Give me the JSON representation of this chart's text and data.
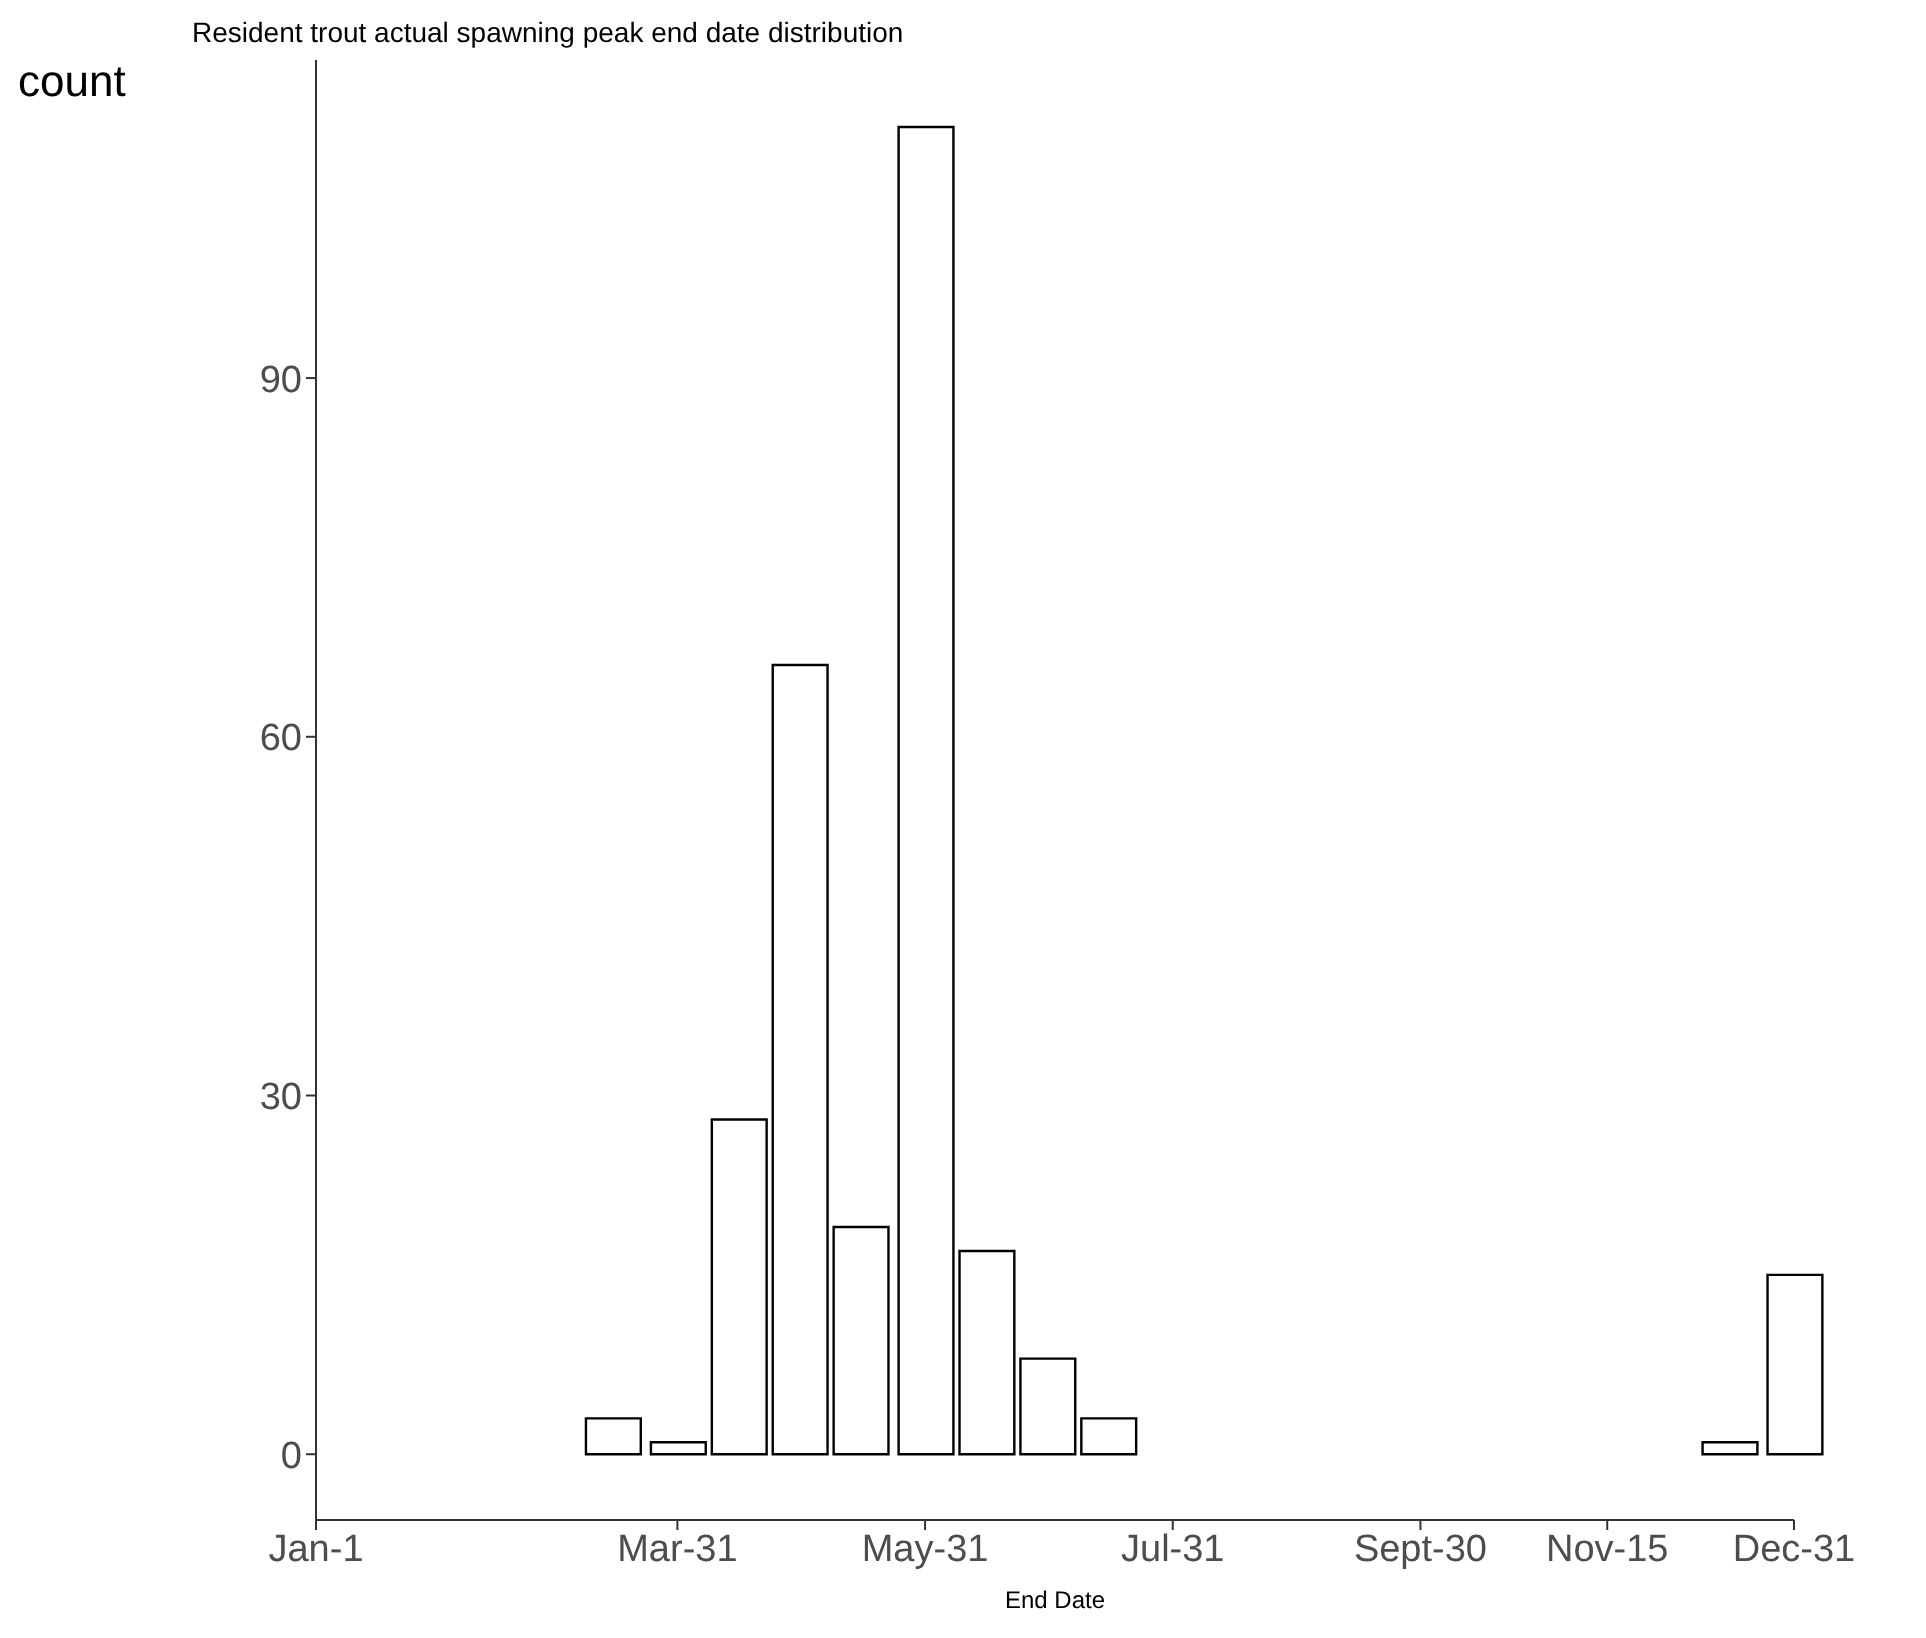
{
  "chart_data": {
    "type": "bar",
    "title": "Resident trout actual spawning peak end date distribution",
    "xlabel": "End Date",
    "ylabel": "count",
    "x": [
      "--03-15",
      "--03-31",
      "--04-15",
      "--04-30",
      "--05-15",
      "--05-31",
      "--06-15",
      "--06-30",
      "--07-15",
      "--12-15",
      "--12-31"
    ],
    "values": [
      3,
      1,
      28,
      66,
      19,
      111,
      17,
      8,
      3,
      1,
      15
    ],
    "color": "#ffffff",
    "xlim": [
      "--01-01",
      "--12-31"
    ],
    "xticks": [
      {
        "value": "--01-01",
        "label": "Jan-1"
      },
      {
        "value": "--03-31",
        "label": "Mar-31"
      },
      {
        "value": "--05-31",
        "label": "May-31"
      },
      {
        "value": "--07-31",
        "label": "Jul-31"
      },
      {
        "value": "--09-30",
        "label": "Sept-30"
      },
      {
        "value": "--11-15",
        "label": "Nov-15"
      },
      {
        "value": "--12-31",
        "label": "Dec-31"
      }
    ],
    "ylim": [
      -5.5,
      116.6
    ],
    "yticks": [
      0,
      30,
      60,
      90
    ]
  }
}
